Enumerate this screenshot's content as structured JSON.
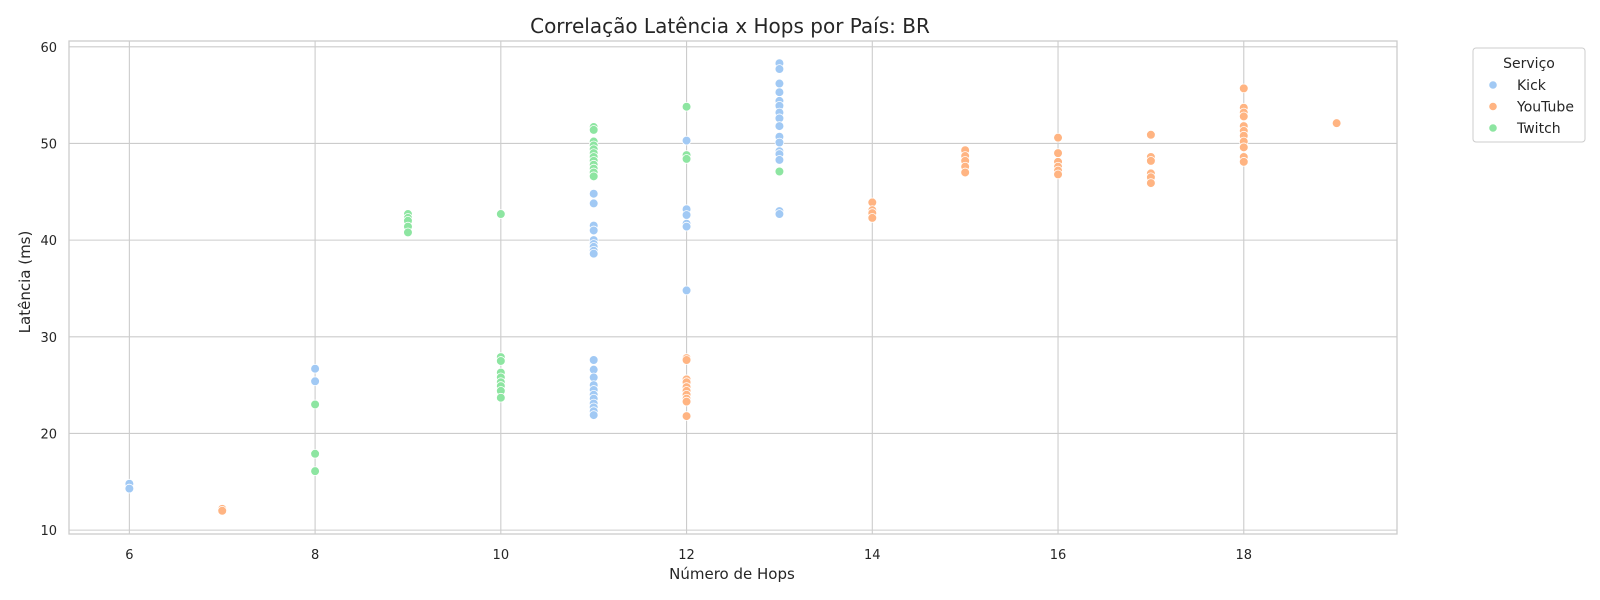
{
  "chart_data": {
    "type": "scatter",
    "title": "Correlação Latência x Hops por País: BR",
    "xlabel": "Número de Hops",
    "ylabel": "Latência (ms)",
    "xlim": [
      5.35,
      19.65
    ],
    "ylim": [
      9.6,
      60.6
    ],
    "xticks": [
      6,
      8,
      10,
      12,
      14,
      16,
      18
    ],
    "yticks": [
      10,
      20,
      30,
      40,
      50,
      60
    ],
    "grid": true,
    "legend": {
      "title": "Serviço",
      "placement": "outside-top-right"
    },
    "series": [
      {
        "name": "Kick",
        "color": "#a1c9f4",
        "points": [
          [
            6,
            14.8
          ],
          [
            6,
            14.3
          ],
          [
            8,
            26.7
          ],
          [
            8,
            25.4
          ],
          [
            11,
            44.8
          ],
          [
            11,
            43.8
          ],
          [
            11,
            41.5
          ],
          [
            11,
            41.0
          ],
          [
            11,
            40.0
          ],
          [
            11,
            39.6
          ],
          [
            11,
            39.3
          ],
          [
            11,
            38.9
          ],
          [
            11,
            38.6
          ],
          [
            11,
            27.6
          ],
          [
            11,
            26.6
          ],
          [
            11,
            25.8
          ],
          [
            11,
            25.0
          ],
          [
            11,
            24.5
          ],
          [
            11,
            24.0
          ],
          [
            11,
            23.6
          ],
          [
            11,
            23.1
          ],
          [
            11,
            22.7
          ],
          [
            11,
            22.3
          ],
          [
            11,
            21.9
          ],
          [
            12,
            50.3
          ],
          [
            12,
            43.2
          ],
          [
            12,
            42.6
          ],
          [
            12,
            41.7
          ],
          [
            12,
            41.4
          ],
          [
            12,
            34.8
          ],
          [
            13,
            58.3
          ],
          [
            13,
            57.7
          ],
          [
            13,
            56.2
          ],
          [
            13,
            55.3
          ],
          [
            13,
            54.4
          ],
          [
            13,
            53.9
          ],
          [
            13,
            53.2
          ],
          [
            13,
            52.6
          ],
          [
            13,
            51.8
          ],
          [
            13,
            50.7
          ],
          [
            13,
            50.1
          ],
          [
            13,
            49.2
          ],
          [
            13,
            48.9
          ],
          [
            13,
            48.3
          ],
          [
            13,
            43.0
          ],
          [
            13,
            42.7
          ]
        ]
      },
      {
        "name": "YouTube",
        "color": "#ffb482",
        "points": [
          [
            7,
            12.2
          ],
          [
            7,
            12.0
          ],
          [
            12,
            27.8
          ],
          [
            12,
            27.6
          ],
          [
            12,
            25.6
          ],
          [
            12,
            25.3
          ],
          [
            12,
            24.8
          ],
          [
            12,
            24.4
          ],
          [
            12,
            24.0
          ],
          [
            12,
            23.6
          ],
          [
            12,
            23.3
          ],
          [
            12,
            21.8
          ],
          [
            14,
            43.9
          ],
          [
            14,
            43.1
          ],
          [
            14,
            42.8
          ],
          [
            14,
            42.3
          ],
          [
            15,
            49.3
          ],
          [
            15,
            48.7
          ],
          [
            15,
            48.2
          ],
          [
            15,
            47.6
          ],
          [
            15,
            47.0
          ],
          [
            16,
            50.6
          ],
          [
            16,
            49.0
          ],
          [
            16,
            48.1
          ],
          [
            16,
            47.6
          ],
          [
            16,
            47.2
          ],
          [
            16,
            46.8
          ],
          [
            17,
            50.9
          ],
          [
            17,
            48.6
          ],
          [
            17,
            48.2
          ],
          [
            17,
            46.9
          ],
          [
            17,
            46.5
          ],
          [
            17,
            45.9
          ],
          [
            18,
            55.7
          ],
          [
            18,
            53.7
          ],
          [
            18,
            53.2
          ],
          [
            18,
            52.8
          ],
          [
            18,
            51.8
          ],
          [
            18,
            51.3
          ],
          [
            18,
            50.8
          ],
          [
            18,
            50.2
          ],
          [
            18,
            49.6
          ],
          [
            18,
            48.6
          ],
          [
            18,
            48.1
          ],
          [
            19,
            52.1
          ]
        ]
      },
      {
        "name": "Twitch",
        "color": "#8de5a1",
        "points": [
          [
            8,
            23.0
          ],
          [
            8,
            17.9
          ],
          [
            8,
            16.1
          ],
          [
            9,
            42.7
          ],
          [
            9,
            42.3
          ],
          [
            9,
            42.0
          ],
          [
            9,
            41.4
          ],
          [
            9,
            40.8
          ],
          [
            10,
            42.7
          ],
          [
            10,
            27.9
          ],
          [
            10,
            27.5
          ],
          [
            10,
            26.3
          ],
          [
            10,
            25.8
          ],
          [
            10,
            25.3
          ],
          [
            10,
            24.9
          ],
          [
            10,
            24.4
          ],
          [
            10,
            23.7
          ],
          [
            11,
            51.7
          ],
          [
            11,
            51.4
          ],
          [
            11,
            50.2
          ],
          [
            11,
            49.8
          ],
          [
            11,
            49.4
          ],
          [
            11,
            49.0
          ],
          [
            11,
            48.6
          ],
          [
            11,
            48.2
          ],
          [
            11,
            47.8
          ],
          [
            11,
            47.4
          ],
          [
            11,
            47.0
          ],
          [
            11,
            46.6
          ],
          [
            12,
            53.8
          ],
          [
            12,
            48.8
          ],
          [
            12,
            48.4
          ],
          [
            13,
            47.1
          ]
        ]
      }
    ]
  }
}
